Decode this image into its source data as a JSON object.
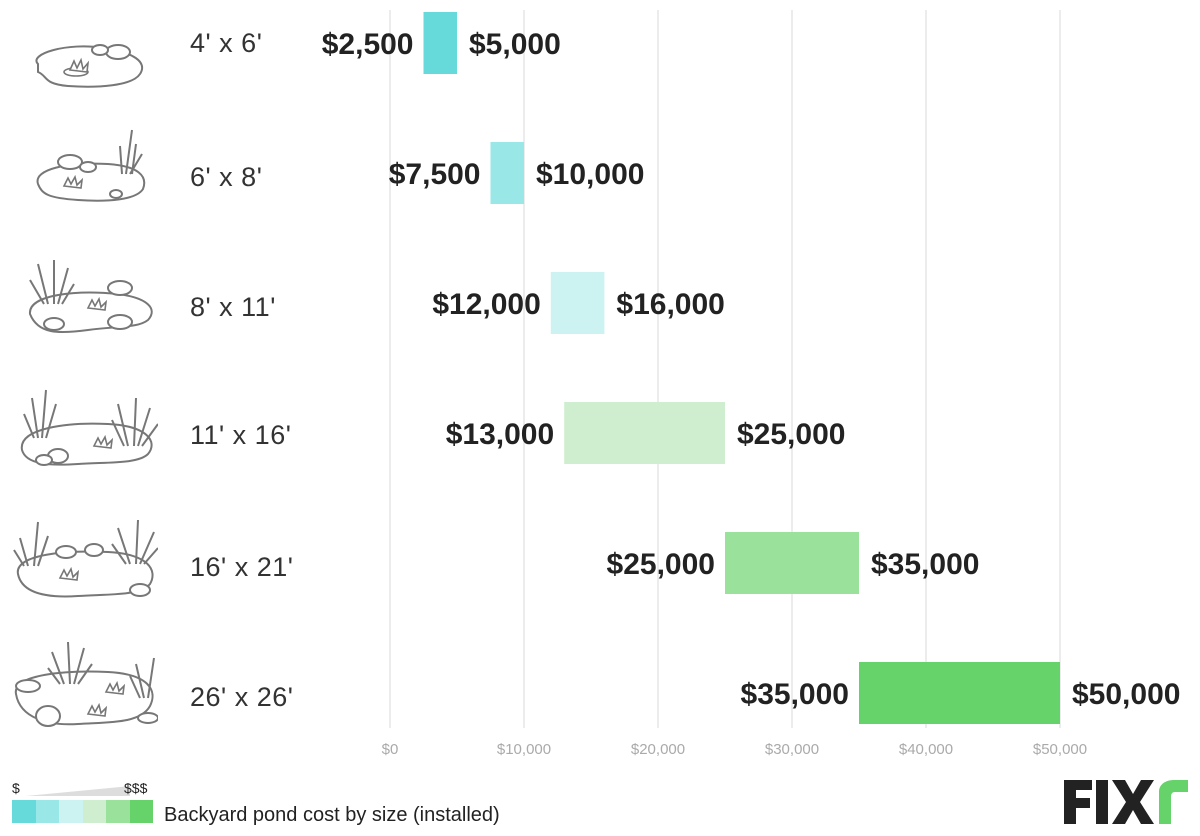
{
  "chart_data": {
    "type": "bar",
    "subtype": "floating-range",
    "categories": [
      "4' x 6'",
      "6' x 8'",
      "8' x 11'",
      "11' x 16'",
      "16' x 21'",
      "26' x 26'"
    ],
    "series": [
      {
        "low": 2500,
        "high": 5000,
        "low_label": "$2,500",
        "high_label": "$5,000",
        "color": "#66dada"
      },
      {
        "low": 7500,
        "high": 10000,
        "low_label": "$7,500",
        "high_label": "$10,000",
        "color": "#99e7e7"
      },
      {
        "low": 12000,
        "high": 16000,
        "low_label": "$12,000",
        "high_label": "$16,000",
        "color": "#cdf2f2"
      },
      {
        "low": 13000,
        "high": 25000,
        "low_label": "$13,000",
        "high_label": "$25,000",
        "color": "#ceeecf"
      },
      {
        "low": 25000,
        "high": 35000,
        "low_label": "$25,000",
        "high_label": "$35,000",
        "color": "#9ae29c"
      },
      {
        "low": 35000,
        "high": 50000,
        "low_label": "$35,000",
        "high_label": "$50,000",
        "color": "#66d26a"
      }
    ],
    "xlim": [
      0,
      50000
    ],
    "xticks": [
      0,
      10000,
      20000,
      30000,
      40000,
      50000
    ],
    "xtick_labels": [
      "$0",
      "$10,000",
      "$20,000",
      "$30,000",
      "$40,000",
      "$50,000"
    ],
    "grid": true,
    "title": "",
    "xlabel": "",
    "ylabel": ""
  },
  "legend": {
    "low_label": "$",
    "high_label": "$$$",
    "colors": [
      "#66dada",
      "#99e7e7",
      "#cdf2f2",
      "#ceeecf",
      "#9ae29c",
      "#66d26a"
    ]
  },
  "caption": "Backyard pond cost by size (installed)",
  "logo": {
    "text": "FIXr",
    "dark_color": "#222222",
    "accent_color": "#66d26a"
  },
  "icons": [
    "pond-small-icon",
    "pond-reeds-icon",
    "pond-medium-icon",
    "pond-large-icon",
    "pond-xlarge-icon",
    "pond-xxlarge-icon"
  ]
}
